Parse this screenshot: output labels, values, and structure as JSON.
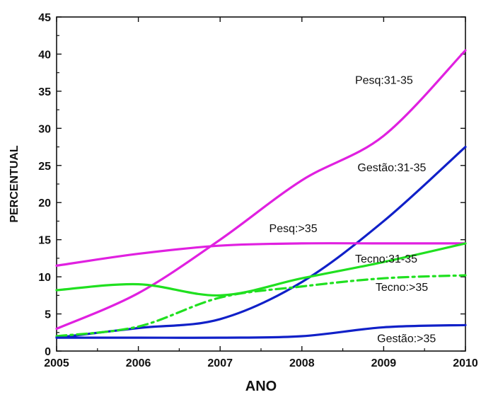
{
  "chart_data": {
    "type": "line",
    "title": "",
    "xlabel": "ANO",
    "ylabel": "PERCENTUAL",
    "xlim": [
      2005,
      2010
    ],
    "ylim": [
      0,
      45
    ],
    "x_ticks": [
      "2005",
      "2006",
      "2007",
      "2008",
      "2009",
      "2010"
    ],
    "y_ticks": [
      "0",
      "5",
      "10",
      "15",
      "20",
      "25",
      "30",
      "35",
      "40",
      "45"
    ],
    "grid": false,
    "legend": "none (series labeled directly on plot)",
    "x": [
      2005,
      2006,
      2007,
      2008,
      2009,
      2010
    ],
    "series": [
      {
        "name": "Pesq:31-35",
        "color": "#e020e0",
        "dash": "solid",
        "values": [
          3.0,
          7.8,
          15.0,
          23.0,
          29.0,
          40.5
        ]
      },
      {
        "name": "Gestão:31-35",
        "color": "#1020c8",
        "dash": "solid",
        "values": [
          1.8,
          3.1,
          4.3,
          9.3,
          17.5,
          27.5
        ]
      },
      {
        "name": "Pesq:>35",
        "color": "#e020e0",
        "dash": "solid",
        "values": [
          11.5,
          13.1,
          14.2,
          14.5,
          14.5,
          14.5
        ]
      },
      {
        "name": "Tecno:31-35",
        "color": "#20e020",
        "dash": "solid",
        "values": [
          8.2,
          9.0,
          7.5,
          9.8,
          12.0,
          14.5
        ]
      },
      {
        "name": "Tecno:>35",
        "color": "#20e020",
        "dash": "dashdot",
        "values": [
          2.0,
          3.3,
          7.2,
          8.7,
          9.8,
          10.2
        ]
      },
      {
        "name": "Gestão:>35",
        "color": "#1020c8",
        "dash": "solid",
        "values": [
          1.8,
          1.8,
          1.8,
          2.0,
          3.2,
          3.5
        ]
      }
    ]
  }
}
